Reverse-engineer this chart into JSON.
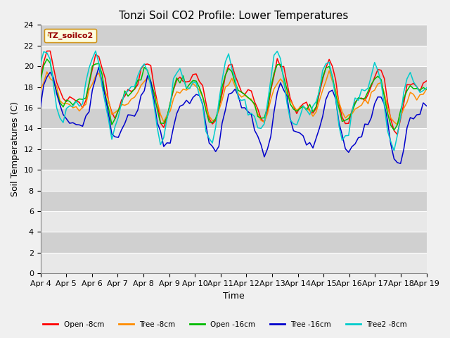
{
  "title": "Tonzi Soil CO2 Profile: Lower Temperatures",
  "xlabel": "Time",
  "ylabel": "Soil Temperatures (C)",
  "ylim": [
    0,
    24
  ],
  "yticks": [
    0,
    2,
    4,
    6,
    8,
    10,
    12,
    14,
    16,
    18,
    20,
    22,
    24
  ],
  "xtick_labels": [
    "Apr 4",
    "Apr 5",
    "Apr 6",
    "Apr 7",
    "Apr 8",
    "Apr 9",
    "Apr 10",
    "Apr 11",
    "Apr 12",
    "Apr 13",
    "Apr 14",
    "Apr 15",
    "Apr 16",
    "Apr 17",
    "Apr 18",
    "Apr 19"
  ],
  "legend_label": "TZ_soilco2",
  "series_labels": [
    "Open -8cm",
    "Tree -8cm",
    "Open -16cm",
    "Tree -16cm",
    "Tree2 -8cm"
  ],
  "series_colors": [
    "#ff0000",
    "#ff8c00",
    "#00bb00",
    "#0000cc",
    "#00cccc"
  ],
  "plot_bg": "#dcdcdc",
  "band_light": "#e8e8e8",
  "band_dark": "#d0d0d0",
  "fig_bg": "#f0f0f0",
  "title_fontsize": 11,
  "axis_fontsize": 9,
  "tick_fontsize": 8
}
